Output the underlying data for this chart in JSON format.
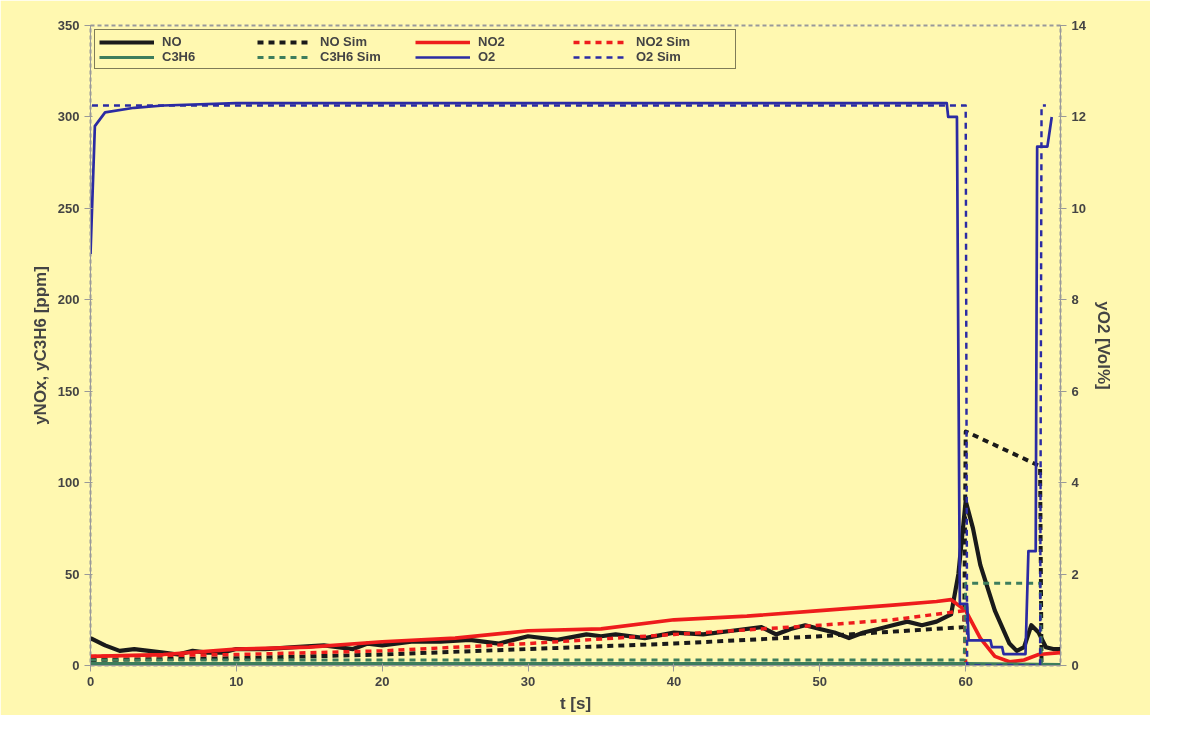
{
  "chart_data": {
    "type": "line",
    "xlabel": "t [s]",
    "ylabel": "yNOx, yC3H6 [ppm]",
    "y2label": "yO2 [Vol%]",
    "xlim": [
      0,
      66.5
    ],
    "xticks": [
      0,
      10,
      20,
      30,
      40,
      50,
      60
    ],
    "ylim": [
      0,
      350
    ],
    "yticks": [
      0,
      50,
      100,
      150,
      200,
      250,
      300,
      350
    ],
    "y2lim": [
      0,
      14
    ],
    "y2ticks": [
      0,
      2,
      4,
      6,
      8,
      10,
      12,
      14
    ],
    "grid": false,
    "legend": "top left",
    "marker": "none",
    "series": [
      {
        "name": "NO",
        "color": "#1a1a1a",
        "line_style": "solid",
        "x": [
          0,
          1,
          2,
          3,
          4,
          5,
          6,
          7,
          8,
          9,
          10,
          12,
          14,
          16,
          18,
          19,
          20,
          22,
          24,
          26,
          28,
          30,
          32,
          34,
          35,
          36,
          38,
          40,
          42,
          44,
          46,
          47,
          48,
          49,
          50,
          51,
          52,
          53,
          54,
          55,
          56,
          57,
          58,
          59,
          59.5,
          60,
          60.5,
          61,
          62,
          63,
          63.5,
          64,
          64.5,
          65,
          65.5,
          66,
          66.5
        ],
        "values": [
          15,
          11,
          8,
          9,
          8,
          7,
          6,
          8,
          7,
          7,
          9,
          9,
          10,
          11,
          9,
          12,
          11,
          13,
          13,
          14,
          12,
          16,
          14,
          17,
          16,
          17,
          15,
          18,
          17,
          19,
          21,
          17,
          20,
          22,
          20,
          18,
          15,
          18,
          20,
          22,
          24,
          22,
          24,
          28,
          50,
          90,
          75,
          55,
          30,
          12,
          8,
          10,
          22,
          18,
          10,
          9,
          9
        ]
      },
      {
        "name": "NO Sim",
        "color": "#1a1a1a",
        "line_style": "dashed",
        "x": [
          0,
          10,
          20,
          30,
          40,
          50,
          59.9,
          60.0,
          65.1,
          65.2
        ],
        "values": [
          3,
          4,
          6,
          9,
          12,
          16,
          21,
          128,
          109,
          0
        ]
      },
      {
        "name": "NO2",
        "color": "#ee1c1c",
        "line_style": "solid",
        "x": [
          0,
          5,
          10,
          15,
          20,
          25,
          30,
          35,
          40,
          45,
          50,
          55,
          58,
          59,
          60,
          61,
          62,
          63,
          64,
          65,
          66.5
        ],
        "values": [
          5,
          6,
          9,
          10,
          13,
          15,
          19,
          20,
          25,
          27,
          30,
          33,
          35,
          36,
          30,
          15,
          5,
          2,
          3,
          6,
          7
        ]
      },
      {
        "name": "NO2 Sim",
        "color": "#ee1c1c",
        "line_style": "dashed",
        "x": [
          0,
          10,
          20,
          30,
          40,
          50,
          55,
          59.9,
          60.0
        ],
        "values": [
          5,
          6,
          8,
          12,
          17,
          22,
          25,
          30,
          0
        ]
      },
      {
        "name": "C3H6",
        "color": "#3d7d5c",
        "line_style": "solid",
        "x": [
          0,
          60,
          66.5
        ],
        "values": [
          1,
          1,
          0.5
        ]
      },
      {
        "name": "C3H6 Sim",
        "color": "#3d7d5c",
        "line_style": "dashed",
        "x": [
          0,
          59.9,
          60.0,
          65.1,
          65.2,
          66.5
        ],
        "values": [
          3,
          3,
          45,
          45,
          0,
          0
        ]
      },
      {
        "name": "O2",
        "color": "#2b2ba3",
        "line_style": "solid",
        "axis": "y2",
        "x": [
          0,
          0.3,
          1,
          3,
          5,
          10,
          58.7,
          58.8,
          59.4,
          59.6,
          60.1,
          60.2,
          61.7,
          61.8,
          62.5,
          62.6,
          64.1,
          64.3,
          64.8,
          64.9,
          65.6,
          65.9
        ],
        "values": [
          9,
          11.8,
          12.1,
          12.2,
          12.25,
          12.3,
          12.3,
          12.0,
          12.0,
          1.35,
          1.35,
          0.55,
          0.55,
          0.4,
          0.4,
          0.25,
          0.25,
          2.5,
          2.5,
          11.35,
          11.35,
          12.0
        ]
      },
      {
        "name": "O2 Sim",
        "color": "#2b2ba3",
        "line_style": "dashed",
        "axis": "y2",
        "x": [
          0.1,
          60.0,
          60.1,
          65.1,
          65.2,
          65.5
        ],
        "values": [
          12.25,
          12.25,
          0,
          0,
          12.25,
          12.25
        ]
      }
    ]
  }
}
